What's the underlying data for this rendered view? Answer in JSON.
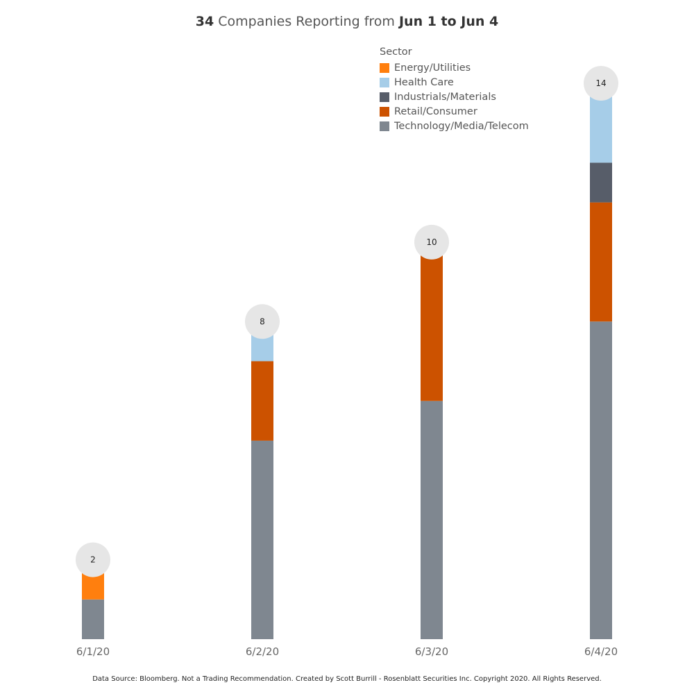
{
  "title": {
    "count": "34",
    "middle": "Companies Reporting from",
    "range": "Jun 1 to Jun 4"
  },
  "legend": {
    "title": "Sector",
    "items": [
      {
        "label": "Energy/Utilities",
        "color": "#ff7f0e"
      },
      {
        "label": "Health Care",
        "color": "#a6cde8"
      },
      {
        "label": "Industrials/Materials",
        "color": "#575d69"
      },
      {
        "label": "Retail/Consumer",
        "color": "#cc5200"
      },
      {
        "label": "Technology/Media/Telecom",
        "color": "#7f8790"
      }
    ]
  },
  "chart_data": {
    "type": "bar",
    "stacked": true,
    "categories": [
      "6/1/20",
      "6/2/20",
      "6/3/20",
      "6/4/20"
    ],
    "series": [
      {
        "name": "Technology/Media/Telecom",
        "color": "#7f8790",
        "values": [
          1,
          5,
          6,
          8
        ]
      },
      {
        "name": "Retail/Consumer",
        "color": "#cc5200",
        "values": [
          0,
          2,
          4,
          3
        ]
      },
      {
        "name": "Industrials/Materials",
        "color": "#575d69",
        "values": [
          0,
          0,
          0,
          1
        ]
      },
      {
        "name": "Health Care",
        "color": "#a6cde8",
        "values": [
          0,
          1,
          0,
          2
        ]
      },
      {
        "name": "Energy/Utilities",
        "color": "#ff7f0e",
        "values": [
          1,
          0,
          0,
          0
        ]
      }
    ],
    "totals": [
      "2",
      "8",
      "10",
      "14"
    ],
    "ylim": [
      0,
      14
    ],
    "grid": false,
    "legend_position": "top-right"
  },
  "footer": "Data Source: Bloomberg. Not a Trading Recommendation. Created by Scott Burrill - Rosenblatt Securities Inc. Copyright 2020. All Rights Reserved."
}
